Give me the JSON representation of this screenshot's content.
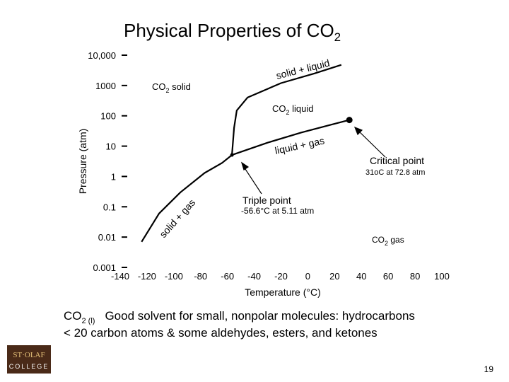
{
  "title": [
    "Physical Properties of CO",
    "2"
  ],
  "chart_data": {
    "type": "line",
    "xlabel": "Temperature (°C)",
    "ylabel": "Pressure (atm)",
    "xlim": [
      -140,
      100
    ],
    "ylim": [
      0.001,
      10000
    ],
    "log_y": true,
    "xticks": [
      -140,
      -120,
      -100,
      -80,
      -60,
      -40,
      -20,
      0,
      20,
      40,
      60,
      80,
      100
    ],
    "yticks": [
      {
        "value": 10000,
        "label": "10,000"
      },
      1000,
      100,
      10,
      1,
      0.1,
      0.01,
      0.001
    ],
    "color": "#000000",
    "series": [
      {
        "x": [
          -124,
          -111,
          -95,
          -77,
          -64,
          -56.6
        ],
        "values": [
          0.007,
          0.06,
          0.3,
          1.3,
          2.8,
          5.11
        ]
      },
      {
        "x": [
          -56.6,
          -30,
          -5,
          15,
          31
        ],
        "values": [
          5.11,
          13,
          28,
          48,
          72.8
        ]
      },
      {
        "x": [
          -56.6,
          -55,
          -53,
          -45,
          -20,
          5,
          25
        ],
        "values": [
          5.11,
          40,
          150,
          400,
          1200,
          2500,
          4800
        ]
      }
    ],
    "markers": [
      {
        "x": -56.6,
        "y": 5.11
      },
      {
        "x": 31,
        "y": 72.8
      }
    ],
    "annotations": [
      [
        "CO",
        "2",
        " solid"
      ],
      [
        "CO",
        "2",
        " liquid"
      ],
      [
        "CO",
        "2",
        " gas"
      ],
      [
        "solid + liquid"
      ],
      [
        "liquid + gas"
      ],
      [
        "solid + gas"
      ],
      [
        "Triple point"
      ],
      [
        "-56.6°C at 5.11 atm"
      ],
      [
        "Critical point"
      ],
      [
        "31oC at 72.8 atm"
      ]
    ]
  },
  "caption": [
    "CO",
    "2 (l)",
    "Good solvent for small, nonpolar molecules: hydrocarbons",
    "< 20 carbon atoms & some aldehydes, esters, and ketones"
  ],
  "logo": [
    "ST·OLAF",
    "COLLEGE"
  ],
  "page_number": "19"
}
